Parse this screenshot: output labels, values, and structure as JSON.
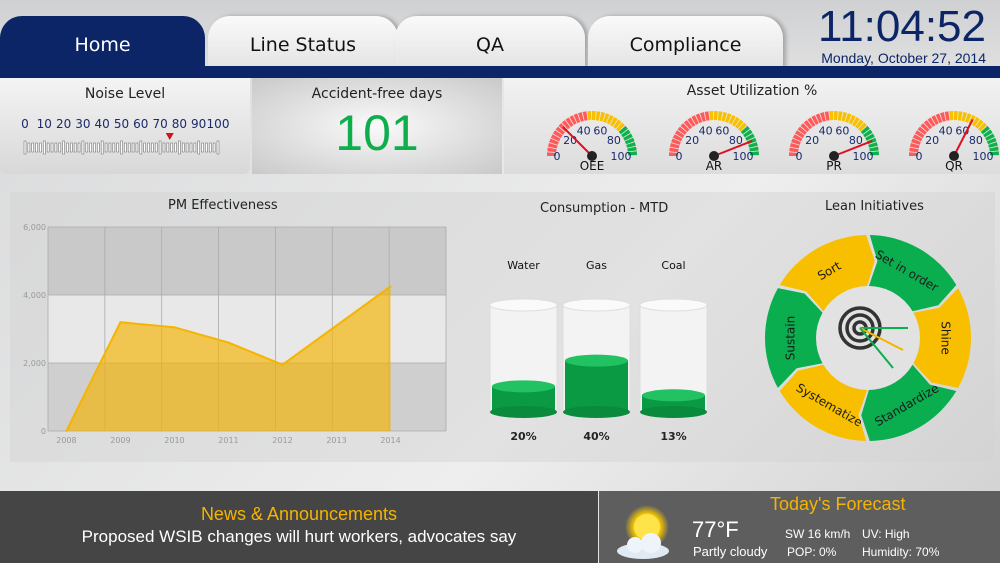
{
  "tabs": [
    {
      "label": "Home",
      "active": true
    },
    {
      "label": "Line Status"
    },
    {
      "label": "QA"
    },
    {
      "label": "Compliance"
    }
  ],
  "clock": {
    "time": "11:04:52",
    "date": "Monday, October 27, 2014"
  },
  "noise": {
    "title": "Noise Level",
    "ticks": [
      "0",
      "10",
      "20",
      "30",
      "40",
      "50",
      "60",
      "70",
      "80",
      "90",
      "100"
    ],
    "value": 75
  },
  "accident": {
    "title": "Accident-free days",
    "value": "101"
  },
  "asset": {
    "title": "Asset Utilization %",
    "scale": [
      "0",
      "20",
      "40",
      "60",
      "80",
      "100"
    ],
    "gauges": [
      {
        "label": "OEE",
        "value": 25
      },
      {
        "label": "AR",
        "value": 88
      },
      {
        "label": "PR",
        "value": 88
      },
      {
        "label": "QR",
        "value": 65
      }
    ]
  },
  "chart_data": {
    "type": "area",
    "title": "PM Effectiveness",
    "categories": [
      "2008",
      "2009",
      "2010",
      "2011",
      "2012",
      "2013",
      "2014"
    ],
    "values": [
      0,
      3200,
      3050,
      2600,
      1950,
      3100,
      4250
    ],
    "yticks": [
      "0",
      "2,000",
      "4,000",
      "6,000"
    ],
    "ylim": [
      0,
      6000
    ],
    "grid": true,
    "color": "#f5b400"
  },
  "consumption": {
    "title": "Consumption - MTD",
    "tanks": [
      {
        "label": "Water",
        "value": 20,
        "pct": "20%"
      },
      {
        "label": "Gas",
        "value": 40,
        "pct": "40%"
      },
      {
        "label": "Coal",
        "value": 13,
        "pct": "13%"
      }
    ]
  },
  "lean": {
    "title": "Lean Initiatives",
    "segments": [
      {
        "label": "Sort",
        "color": "#f8bf00"
      },
      {
        "label": "Set in order",
        "color": "#0aae4e"
      },
      {
        "label": "Shine",
        "color": "#f8bf00"
      },
      {
        "label": "Standardize",
        "color": "#0aae4e"
      },
      {
        "label": "Systematize",
        "color": "#f8bf00"
      },
      {
        "label": "Sustain",
        "color": "#0aae4e"
      }
    ]
  },
  "news": {
    "heading": "News & Announcements",
    "headline": "Proposed WSIB changes will hurt workers, advocates say"
  },
  "weather": {
    "heading": "Today's Forecast",
    "temp": "77°F",
    "condition": "Partly cloudy",
    "wind": "SW 16 km/h",
    "pop": "POP: 0%",
    "uv": "UV: High",
    "humidity": "Humidity: 70%",
    "icon": "partly-cloudy-icon"
  }
}
